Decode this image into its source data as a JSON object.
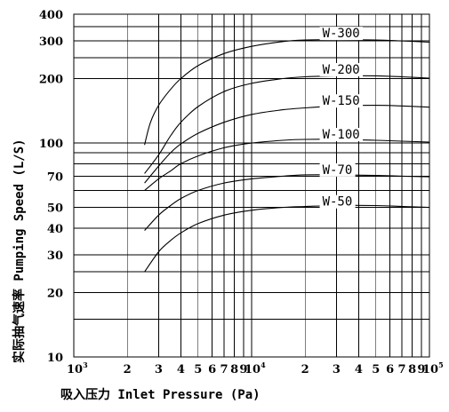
{
  "chart_data": {
    "type": "line",
    "title": "",
    "xlabel": "吸入压力 Inlet Pressure (Pa)",
    "ylabel": "实际抽气速率 Pumping Speed (L/S)",
    "x_scale": "log",
    "y_scale": "log",
    "xlim": [
      1000,
      100000
    ],
    "ylim": [
      10,
      400
    ],
    "grid": true,
    "legend": "inline labels",
    "x_tick_labels": [
      {
        "value": 1000,
        "label": "10",
        "exp": "3"
      },
      {
        "value": 2000,
        "label": "2"
      },
      {
        "value": 3000,
        "label": "3"
      },
      {
        "value": 4000,
        "label": "4"
      },
      {
        "value": 5000,
        "label": "5"
      },
      {
        "value": 6000,
        "label": "6"
      },
      {
        "value": 7000,
        "label": "7"
      },
      {
        "value": 8000,
        "label": "8"
      },
      {
        "value": 9000,
        "label": "9"
      },
      {
        "value": 10000,
        "label": "10",
        "exp": "4"
      },
      {
        "value": 20000,
        "label": "2"
      },
      {
        "value": 30000,
        "label": "3"
      },
      {
        "value": 40000,
        "label": "4"
      },
      {
        "value": 50000,
        "label": "5"
      },
      {
        "value": 60000,
        "label": "6"
      },
      {
        "value": 70000,
        "label": "7"
      },
      {
        "value": 80000,
        "label": "8"
      },
      {
        "value": 90000,
        "label": "9"
      },
      {
        "value": 100000,
        "label": "10",
        "exp": "5"
      }
    ],
    "y_tick_labels": [
      {
        "value": 10,
        "label": "10"
      },
      {
        "value": 20,
        "label": "20"
      },
      {
        "value": 30,
        "label": "30"
      },
      {
        "value": 40,
        "label": "40"
      },
      {
        "value": 50,
        "label": "50"
      },
      {
        "value": 70,
        "label": "70"
      },
      {
        "value": 100,
        "label": "100"
      },
      {
        "value": 200,
        "label": "200"
      },
      {
        "value": 300,
        "label": "300"
      },
      {
        "value": 400,
        "label": "400"
      }
    ],
    "series": [
      {
        "name": "W-300",
        "x": [
          2500,
          2700,
          3000,
          3500,
          4000,
          5000,
          7000,
          10000,
          15000,
          20000,
          30000,
          50000,
          70000,
          100000
        ],
        "y": [
          98,
          125,
          150,
          178,
          200,
          230,
          262,
          283,
          298,
          303,
          304,
          303,
          300,
          296
        ]
      },
      {
        "name": "W-200",
        "x": [
          2500,
          3000,
          3500,
          4000,
          5000,
          7000,
          10000,
          15000,
          20000,
          30000,
          50000,
          70000,
          100000
        ],
        "y": [
          72,
          88,
          108,
          125,
          148,
          174,
          190,
          200,
          204,
          206,
          206,
          204,
          201
        ]
      },
      {
        "name": "W-150",
        "x": [
          2500,
          3000,
          3500,
          4000,
          5000,
          7000,
          10000,
          15000,
          20000,
          30000,
          50000,
          70000,
          100000
        ],
        "y": [
          65,
          78,
          90,
          99,
          111,
          125,
          136,
          143,
          146,
          149,
          150,
          149,
          147
        ]
      },
      {
        "name": "W-100",
        "x": [
          2500,
          3000,
          3500,
          4000,
          5000,
          7000,
          10000,
          15000,
          20000,
          30000,
          50000,
          70000,
          100000
        ],
        "y": [
          60,
          68,
          74,
          80,
          87,
          95,
          100,
          103,
          104,
          104,
          103,
          102,
          101
        ]
      },
      {
        "name": "W-70",
        "x": [
          2500,
          3000,
          3500,
          4000,
          5000,
          7000,
          10000,
          15000,
          20000,
          30000,
          50000,
          70000,
          100000
        ],
        "y": [
          39,
          46,
          51,
          55,
          60,
          65,
          68,
          70,
          71,
          71,
          70.5,
          70,
          69.5
        ]
      },
      {
        "name": "W-50",
        "x": [
          2500,
          3000,
          3500,
          4000,
          5000,
          7000,
          10000,
          15000,
          20000,
          30000,
          50000,
          70000,
          100000
        ],
        "y": [
          25,
          31,
          35,
          38,
          42,
          46,
          48.5,
          50,
          50.5,
          51,
          51,
          50.5,
          50
        ]
      }
    ]
  }
}
